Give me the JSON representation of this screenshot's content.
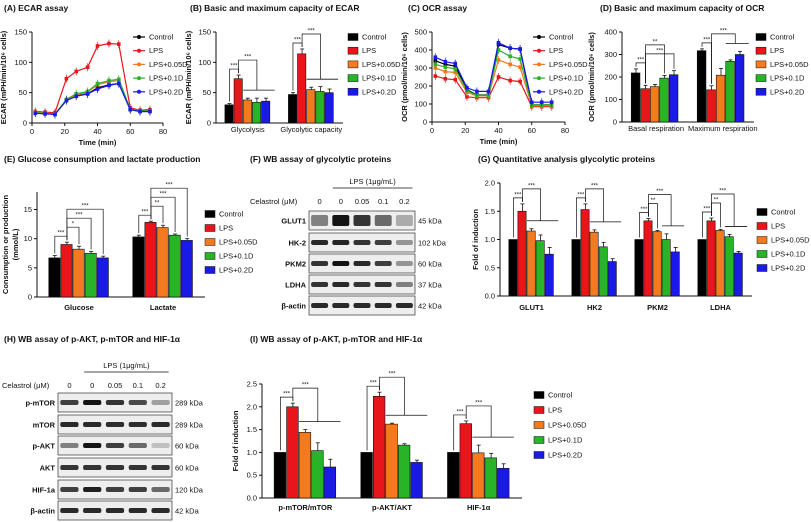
{
  "figure": {
    "colors": {
      "Control": "#000000",
      "LPS": "#e8161b",
      "LPS+0.05D": "#f47a20",
      "LPS+0.1D": "#27b427",
      "LPS+0.2D": "#1a1ae6"
    },
    "groups": [
      "Control",
      "LPS",
      "LPS+0.05D",
      "LPS+0.1D",
      "LPS+0.2D"
    ]
  },
  "chart_data": [
    {
      "id": "A",
      "type": "line",
      "title": "(A) ECAR assay",
      "xlabel": "Time (min)",
      "ylabel": "ECAR (mPH/min/10⁶ cells)",
      "xlim": [
        0,
        80
      ],
      "ylim": [
        0,
        150
      ],
      "xticks": [
        0,
        20,
        40,
        60,
        80
      ],
      "yticks": [
        0,
        50,
        100,
        150
      ],
      "x": [
        2,
        8,
        14,
        21,
        27,
        34,
        40,
        47,
        53,
        60,
        66,
        72
      ],
      "series": [
        {
          "name": "Control",
          "values": [
            17,
            16,
            15,
            37,
            45,
            48,
            58,
            63,
            65,
            22,
            19,
            19
          ]
        },
        {
          "name": "LPS",
          "values": [
            19,
            18,
            17,
            73,
            85,
            92,
            127,
            131,
            130,
            25,
            21,
            22
          ]
        },
        {
          "name": "LPS+0.05D",
          "values": [
            18,
            16,
            15,
            38,
            46,
            51,
            63,
            68,
            70,
            23,
            20,
            20
          ]
        },
        {
          "name": "LPS+0.1D",
          "values": [
            17,
            16,
            14,
            39,
            48,
            52,
            65,
            70,
            72,
            23,
            20,
            20
          ]
        },
        {
          "name": "LPS+0.2D",
          "values": [
            16,
            15,
            14,
            37,
            44,
            48,
            56,
            62,
            65,
            22,
            19,
            19
          ]
        }
      ],
      "legend": "right"
    },
    {
      "id": "B",
      "type": "bar",
      "title": "(B) Basic and maximum capacity of ECAR",
      "ylabel": "ECAR (mPH/min/10⁶ cells)",
      "ylim": [
        0,
        150
      ],
      "yticks": [
        0,
        50,
        100,
        150
      ],
      "categories": [
        "Glycolysis",
        "Glycolytic capacity"
      ],
      "series": [
        {
          "name": "Control",
          "values": [
            30,
            47
          ]
        },
        {
          "name": "LPS",
          "values": [
            73,
            114
          ]
        },
        {
          "name": "LPS+0.05D",
          "values": [
            38,
            55
          ]
        },
        {
          "name": "LPS+0.1D",
          "values": [
            34,
            52
          ]
        },
        {
          "name": "LPS+0.2D",
          "values": [
            36,
            50
          ]
        }
      ],
      "errors": [
        [
          2,
          3
        ],
        [
          6,
          8
        ],
        [
          3,
          4
        ],
        [
          7,
          8
        ],
        [
          5,
          6
        ]
      ],
      "significance": [
        {
          "group": 0,
          "a": 0,
          "b": 1,
          "label": "***"
        },
        {
          "group": 0,
          "a": 1,
          "b": [
            2,
            4
          ],
          "label": "***"
        },
        {
          "group": 1,
          "a": 0,
          "b": 1,
          "label": "***"
        },
        {
          "group": 1,
          "a": 1,
          "b": [
            2,
            4
          ],
          "label": "***"
        }
      ],
      "legend": "right"
    },
    {
      "id": "C",
      "type": "line",
      "title": "(C) OCR assay",
      "xlabel": "Time (min)",
      "ylabel": "OCR (pmol/min/10⁶ cells)",
      "xlim": [
        0,
        80
      ],
      "ylim": [
        0,
        500
      ],
      "xticks": [
        0,
        20,
        40,
        60,
        80
      ],
      "yticks": [
        0,
        100,
        200,
        300,
        400,
        500
      ],
      "x": [
        2,
        8,
        14,
        21,
        27,
        34,
        40,
        47,
        53,
        60,
        66,
        72
      ],
      "series": [
        {
          "name": "Control",
          "values": [
            340,
            320,
            310,
            180,
            150,
            150,
            430,
            410,
            405,
            95,
            95,
            95
          ]
        },
        {
          "name": "LPS",
          "values": [
            255,
            240,
            235,
            140,
            135,
            135,
            250,
            230,
            225,
            85,
            85,
            85
          ]
        },
        {
          "name": "LPS+0.05D",
          "values": [
            300,
            280,
            275,
            165,
            145,
            145,
            345,
            320,
            305,
            90,
            90,
            90
          ]
        },
        {
          "name": "LPS+0.1D",
          "values": [
            320,
            305,
            295,
            175,
            148,
            148,
            400,
            365,
            350,
            95,
            95,
            95
          ]
        },
        {
          "name": "LPS+0.2D",
          "values": [
            360,
            335,
            325,
            190,
            170,
            170,
            440,
            410,
            405,
            110,
            110,
            110
          ]
        }
      ],
      "legend": "right"
    },
    {
      "id": "D",
      "type": "bar",
      "title": "(D) Basic and maximum capacity of OCR",
      "ylabel": "OCR (pmol/min/10⁶ cells)",
      "ylim": [
        0,
        400
      ],
      "yticks": [
        0,
        100,
        200,
        300,
        400
      ],
      "categories": [
        "Basal respiration",
        "Maximum respiration"
      ],
      "series": [
        {
          "name": "Control",
          "values": [
            218,
            317
          ]
        },
        {
          "name": "LPS",
          "values": [
            148,
            143
          ]
        },
        {
          "name": "LPS+0.05D",
          "values": [
            157,
            208
          ]
        },
        {
          "name": "LPS+0.1D",
          "values": [
            195,
            270
          ]
        },
        {
          "name": "LPS+0.2D",
          "values": [
            210,
            300
          ]
        }
      ],
      "errors": [
        [
          18,
          8
        ],
        [
          15,
          18
        ],
        [
          10,
          30
        ],
        [
          12,
          6
        ],
        [
          18,
          14
        ]
      ],
      "significance": [
        {
          "group": 0,
          "a": 0,
          "b": 1,
          "label": "***"
        },
        {
          "group": 0,
          "a": 1,
          "b": 4,
          "label": "***"
        },
        {
          "group": 0,
          "a": 1,
          "b": 3,
          "label": "**"
        },
        {
          "group": 1,
          "a": 0,
          "b": 1,
          "label": "***"
        },
        {
          "group": 1,
          "a": 1,
          "b": [
            3,
            4
          ],
          "label": "***"
        }
      ],
      "legend": "right"
    },
    {
      "id": "E",
      "type": "bar",
      "title": "(E) Glucose consumption and lactate production",
      "ylabel": "Consumption or production",
      "ylabel2": "(mmol/L)",
      "ylim": [
        0,
        18
      ],
      "yticks": [
        0,
        5,
        10,
        15
      ],
      "categories": [
        "Glucose",
        "Lactate"
      ],
      "series": [
        {
          "name": "Control",
          "values": [
            6.7,
            10.3
          ]
        },
        {
          "name": "LPS",
          "values": [
            9.0,
            12.8
          ]
        },
        {
          "name": "LPS+0.05D",
          "values": [
            8.2,
            11.9
          ]
        },
        {
          "name": "LPS+0.1D",
          "values": [
            7.5,
            10.6
          ]
        },
        {
          "name": "LPS+0.2D",
          "values": [
            6.7,
            9.7
          ]
        }
      ],
      "errors": [
        [
          0.4,
          0.3
        ],
        [
          0.4,
          0.2
        ],
        [
          0.5,
          0.4
        ],
        [
          0.3,
          0.2
        ],
        [
          0.3,
          0.3
        ]
      ],
      "significance": [
        {
          "group": 0,
          "a": 0,
          "b": 1,
          "label": "***"
        },
        {
          "group": 0,
          "a": 1,
          "b": 2,
          "label": "*"
        },
        {
          "group": 0,
          "a": 1,
          "b": 3,
          "label": "***"
        },
        {
          "group": 0,
          "a": 1,
          "b": 4,
          "label": "***"
        },
        {
          "group": 1,
          "a": 0,
          "b": 1,
          "label": "***"
        },
        {
          "group": 1,
          "a": 1,
          "b": 2,
          "label": "**"
        },
        {
          "group": 1,
          "a": 1,
          "b": 3,
          "label": "***"
        },
        {
          "group": 1,
          "a": 1,
          "b": 4,
          "label": "***"
        }
      ],
      "legend": "right"
    },
    {
      "id": "G",
      "type": "bar",
      "title": "(G) Quantitative analysis glycolytic proteins",
      "ylabel": "Fold of induction",
      "ylim": [
        0,
        2
      ],
      "yticks": [
        0,
        0.5,
        1,
        1.5,
        2
      ],
      "categories": [
        "GLUT1",
        "HK2",
        "PKM2",
        "LDHA"
      ],
      "series": [
        {
          "name": "Control",
          "values": [
            1,
            1,
            1,
            1
          ]
        },
        {
          "name": "LPS",
          "values": [
            1.5,
            1.53,
            1.33,
            1.33
          ]
        },
        {
          "name": "LPS+0.05D",
          "values": [
            1.15,
            1.13,
            1.14,
            1.16
          ]
        },
        {
          "name": "LPS+0.1D",
          "values": [
            0.98,
            0.87,
            1.0,
            1.05
          ]
        },
        {
          "name": "LPS+0.2D",
          "values": [
            0.74,
            0.61,
            0.78,
            0.76
          ]
        }
      ],
      "errors": [
        [
          0,
          0,
          0,
          0
        ],
        [
          0.13,
          0.1,
          0.04,
          0.05
        ],
        [
          0.04,
          0.04,
          0.02,
          0.02
        ],
        [
          0.1,
          0.08,
          0.1,
          0.04
        ],
        [
          0.12,
          0.05,
          0.08,
          0.03
        ]
      ],
      "significance": [
        {
          "group": 0,
          "a": 0,
          "b": 1,
          "label": "***"
        },
        {
          "group": 0,
          "a": 1,
          "b": [
            2,
            4
          ],
          "label": "***"
        },
        {
          "group": 1,
          "a": 0,
          "b": 1,
          "label": "***"
        },
        {
          "group": 1,
          "a": 1,
          "b": [
            2,
            4
          ],
          "label": "***"
        },
        {
          "group": 2,
          "a": 0,
          "b": 1,
          "label": "***"
        },
        {
          "group": 2,
          "a": 1,
          "b": 2,
          "label": "**"
        },
        {
          "group": 2,
          "a": 1,
          "b": [
            3,
            4
          ],
          "label": "***"
        },
        {
          "group": 3,
          "a": 0,
          "b": 1,
          "label": "***"
        },
        {
          "group": 3,
          "a": 1,
          "b": 2,
          "label": "**"
        },
        {
          "group": 3,
          "a": 1,
          "b": [
            3,
            4
          ],
          "label": "***"
        }
      ],
      "legend": "right"
    },
    {
      "id": "I",
      "type": "bar",
      "title": "(I) WB assay of p-AKT, p-mTOR and HIF-1α",
      "ylabel": "Fold of induction",
      "ylim": [
        0,
        2.5
      ],
      "yticks": [
        0,
        0.5,
        1,
        1.5,
        2,
        2.5
      ],
      "categories": [
        "p-mTOR/mTOR",
        "p-AKT/AKT",
        "HIF-1α"
      ],
      "series": [
        {
          "name": "Control",
          "values": [
            1,
            1,
            1
          ]
        },
        {
          "name": "LPS",
          "values": [
            2.0,
            2.23,
            1.63
          ]
        },
        {
          "name": "LPS+0.05D",
          "values": [
            1.44,
            1.62,
            0.99
          ]
        },
        {
          "name": "LPS+0.1D",
          "values": [
            1.04,
            1.16,
            0.88
          ]
        },
        {
          "name": "LPS+0.2D",
          "values": [
            0.68,
            0.78,
            0.65
          ]
        }
      ],
      "errors": [
        [
          0,
          0,
          0
        ],
        [
          0.08,
          0.09,
          0.06
        ],
        [
          0.06,
          0.02,
          0.17
        ],
        [
          0.17,
          0.03,
          0.1
        ],
        [
          0.17,
          0.05,
          0.1
        ]
      ],
      "significance": [
        {
          "group": 0,
          "a": 0,
          "b": 1,
          "label": "***"
        },
        {
          "group": 0,
          "a": 1,
          "b": [
            2,
            4
          ],
          "label": "***"
        },
        {
          "group": 1,
          "a": 0,
          "b": 1,
          "label": "***"
        },
        {
          "group": 1,
          "a": 1,
          "b": [
            2,
            4
          ],
          "label": "***"
        },
        {
          "group": 2,
          "a": 0,
          "b": 1,
          "label": "***"
        },
        {
          "group": 2,
          "a": 1,
          "b": [
            2,
            4
          ],
          "label": "***"
        }
      ],
      "legend": "right"
    }
  ],
  "blots": [
    {
      "id": "F",
      "title": "(F) WB assay of glycolytic proteins",
      "treatment": "LPS (1μg/mL)",
      "dose_label": "Celastrol (μM)",
      "doses": [
        "0",
        "0",
        "0.05",
        "0.1",
        "0.2"
      ],
      "rows": [
        {
          "protein": "GLUT1",
          "size": "45 kDa",
          "intensity": [
            0.5,
            1,
            0.85,
            0.6,
            0.3
          ]
        },
        {
          "protein": "HK-2",
          "size": "102 kDa",
          "intensity": [
            0.9,
            0.92,
            0.85,
            0.8,
            0.4
          ]
        },
        {
          "protein": "PKM2",
          "size": "60 kDa",
          "intensity": [
            0.85,
            1,
            0.9,
            0.8,
            0.4
          ]
        },
        {
          "protein": "LDHA",
          "size": "37 kDa",
          "intensity": [
            0.85,
            0.9,
            0.85,
            0.85,
            0.5
          ]
        },
        {
          "protein": "β-actin",
          "size": "42 kDa",
          "intensity": [
            0.9,
            0.9,
            0.9,
            0.9,
            0.9
          ]
        }
      ]
    },
    {
      "id": "H",
      "title": "(H) WB assay of p-AKT, p-mTOR and HIF-1α",
      "treatment": "LPS (1μg/mL)",
      "dose_label": "Celastrol (μM)",
      "doses": [
        "0",
        "0",
        "0.05",
        "0.1",
        "0.2"
      ],
      "rows": [
        {
          "protein": "p-mTOR",
          "size": "289 kDa",
          "intensity": [
            0.8,
            1,
            0.85,
            0.75,
            0.35
          ]
        },
        {
          "protein": "mTOR",
          "size": "289 kDa",
          "intensity": [
            0.9,
            0.9,
            0.88,
            0.88,
            0.9
          ]
        },
        {
          "protein": "p-AKT",
          "size": "60 kDa",
          "intensity": [
            0.5,
            1,
            0.8,
            0.6,
            0.2
          ]
        },
        {
          "protein": "AKT",
          "size": "60 kDa",
          "intensity": [
            0.85,
            0.85,
            0.85,
            0.85,
            0.85
          ]
        },
        {
          "protein": "HIF-1a",
          "size": "120 kDa",
          "intensity": [
            0.8,
            0.95,
            0.8,
            0.8,
            0.6
          ]
        },
        {
          "protein": "β-actin",
          "size": "42 kDa",
          "intensity": [
            0.9,
            0.9,
            0.9,
            0.9,
            0.9
          ]
        }
      ]
    }
  ]
}
